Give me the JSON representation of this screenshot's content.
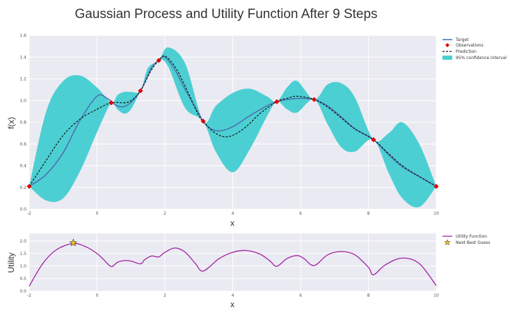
{
  "title": "Gaussian Process and Utility Function After 9 Steps",
  "chart_data": [
    {
      "type": "line",
      "xlabel": "x",
      "ylabel": "f(x)",
      "xlim": [
        -2,
        10
      ],
      "ylim": [
        0.0,
        1.6
      ],
      "xticks": [
        -2,
        0,
        2,
        4,
        6,
        8,
        10
      ],
      "yticks": [
        0.0,
        0.2,
        0.4,
        0.6,
        0.8,
        1.0,
        1.2,
        1.4,
        1.6
      ],
      "grid": true,
      "legend_position": "outside-top-right",
      "legend": [
        "Target",
        "Observations",
        "Prediction",
        "95% confidence interval"
      ],
      "colors": {
        "target": "#4c72b0",
        "observations": "#e00000",
        "prediction": "#111111",
        "interval": "#4ccfd2"
      },
      "observations": {
        "x": [
          -2.0,
          0.42,
          1.28,
          1.82,
          3.13,
          5.3,
          6.4,
          8.15,
          10.0
        ],
        "y": [
          0.21,
          0.98,
          1.09,
          1.37,
          0.81,
          0.99,
          1.01,
          0.64,
          0.21
        ]
      },
      "target": {
        "x": [
          -2.0,
          -1.5,
          -1.0,
          -0.5,
          0.0,
          0.3,
          0.6,
          0.9,
          1.28,
          1.6,
          1.82,
          2.0,
          2.3,
          2.6,
          3.0,
          3.13,
          3.3,
          3.6,
          4.0,
          4.5,
          5.0,
          5.3,
          5.6,
          6.0,
          6.4,
          6.8,
          7.2,
          7.6,
          8.15,
          8.6,
          9.0,
          9.5,
          10.0
        ],
        "y": [
          0.21,
          0.32,
          0.52,
          0.82,
          1.04,
          1.02,
          0.95,
          0.96,
          1.09,
          1.3,
          1.37,
          1.4,
          1.28,
          1.1,
          0.88,
          0.81,
          0.75,
          0.72,
          0.76,
          0.86,
          0.95,
          0.99,
          1.01,
          1.02,
          1.01,
          0.95,
          0.85,
          0.74,
          0.64,
          0.5,
          0.39,
          0.3,
          0.21
        ]
      },
      "prediction": {
        "x": [
          -2.0,
          -1.5,
          -1.0,
          -0.5,
          0.0,
          0.42,
          0.8,
          1.0,
          1.28,
          1.6,
          1.82,
          2.0,
          2.3,
          2.6,
          3.0,
          3.13,
          3.4,
          3.7,
          4.0,
          4.4,
          4.8,
          5.3,
          5.6,
          5.9,
          6.4,
          6.8,
          7.2,
          7.6,
          8.15,
          8.6,
          9.0,
          9.5,
          10.0
        ],
        "y": [
          0.21,
          0.45,
          0.68,
          0.83,
          0.92,
          0.98,
          0.98,
          1.0,
          1.09,
          1.28,
          1.37,
          1.41,
          1.31,
          1.13,
          0.86,
          0.81,
          0.72,
          0.67,
          0.68,
          0.76,
          0.88,
          0.99,
          1.02,
          1.04,
          1.01,
          0.94,
          0.84,
          0.74,
          0.64,
          0.51,
          0.4,
          0.3,
          0.21
        ]
      },
      "confidence_interval": {
        "x": [
          -2.0,
          -1.5,
          -1.0,
          -0.5,
          0.0,
          0.42,
          0.6,
          0.8,
          1.0,
          1.28,
          1.5,
          1.82,
          2.1,
          2.6,
          3.13,
          3.5,
          4.0,
          4.5,
          5.0,
          5.3,
          5.6,
          5.9,
          6.4,
          6.8,
          7.2,
          7.6,
          8.15,
          8.6,
          9.0,
          9.5,
          10.0
        ],
        "upper": [
          0.21,
          0.9,
          1.18,
          1.23,
          1.12,
          0.98,
          1.05,
          1.08,
          1.08,
          1.09,
          1.3,
          1.37,
          1.49,
          1.34,
          0.81,
          0.95,
          1.07,
          1.11,
          1.04,
          0.99,
          1.12,
          1.18,
          1.01,
          1.15,
          1.16,
          1.03,
          0.64,
          0.7,
          0.8,
          0.6,
          0.21
        ],
        "lower": [
          0.21,
          0.08,
          0.1,
          0.35,
          0.71,
          0.98,
          0.92,
          0.88,
          0.92,
          1.09,
          1.22,
          1.37,
          1.31,
          0.93,
          0.81,
          0.53,
          0.34,
          0.55,
          0.85,
          0.99,
          0.92,
          0.89,
          1.01,
          0.78,
          0.57,
          0.53,
          0.64,
          0.33,
          0.1,
          0.02,
          0.21
        ]
      }
    },
    {
      "type": "line",
      "xlabel": "x",
      "ylabel": "Utility",
      "xlim": [
        -2,
        10
      ],
      "ylim": [
        0.0,
        2.3
      ],
      "xticks": [
        -2,
        0,
        2,
        4,
        6,
        8,
        10
      ],
      "yticks": [
        0.0,
        0.5,
        1.0,
        1.5,
        2.0
      ],
      "grid": true,
      "legend_position": "outside-top-right",
      "legend": [
        "Utility Function",
        "Next Best Guess"
      ],
      "colors": {
        "utility": "#a020a0",
        "next_best": "#f0c020"
      },
      "utility": {
        "x": [
          -2.0,
          -1.6,
          -1.2,
          -0.7,
          -0.3,
          0.0,
          0.2,
          0.42,
          0.6,
          0.8,
          1.0,
          1.28,
          1.4,
          1.6,
          1.82,
          2.0,
          2.3,
          2.6,
          2.9,
          3.13,
          3.6,
          4.0,
          4.4,
          4.8,
          5.1,
          5.3,
          5.6,
          5.9,
          6.1,
          6.4,
          6.8,
          7.2,
          7.6,
          8.0,
          8.15,
          8.5,
          9.0,
          9.5,
          10.0
        ],
        "y": [
          0.2,
          1.1,
          1.65,
          1.9,
          1.75,
          1.5,
          1.25,
          0.98,
          1.15,
          1.22,
          1.2,
          1.09,
          1.25,
          1.4,
          1.37,
          1.55,
          1.72,
          1.55,
          1.1,
          0.8,
          1.3,
          1.55,
          1.62,
          1.48,
          1.2,
          0.99,
          1.3,
          1.42,
          1.3,
          1.02,
          1.45,
          1.58,
          1.45,
          0.95,
          0.65,
          1.05,
          1.32,
          1.1,
          0.22
        ]
      },
      "next_best_guess": {
        "x": -0.7,
        "y": 1.93
      }
    }
  ],
  "legend_labels": {
    "target": "Target",
    "observations": "Observations",
    "prediction": "Prediction",
    "interval": "95% confidence interval",
    "utility": "Utility Function",
    "next_best": "Next Best Guess"
  },
  "axis_labels": {
    "top_x": "x",
    "top_y": "f(x)",
    "bottom_x": "x",
    "bottom_y": "Utility"
  }
}
